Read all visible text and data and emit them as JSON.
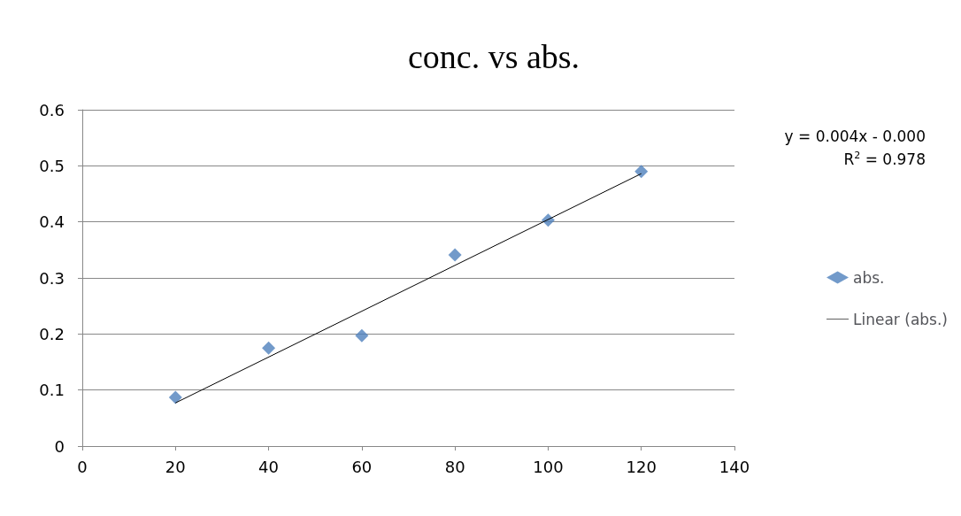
{
  "chart_data": {
    "type": "scatter",
    "title": "conc. vs abs.",
    "x": [
      20,
      40,
      60,
      80,
      100,
      120
    ],
    "series": [
      {
        "name": "abs.",
        "color": "#4f81bd",
        "values": [
          0.087,
          0.175,
          0.197,
          0.341,
          0.403,
          0.49
        ],
        "marker": "diamond"
      },
      {
        "name": "Linear (abs.)",
        "type": "line",
        "color": "#000000",
        "x": [
          20,
          120
        ],
        "values": [
          0.077,
          0.486
        ],
        "marker": "none",
        "line_style": "solid"
      }
    ],
    "xlim": [
      0,
      140
    ],
    "xticks": [
      0,
      20,
      40,
      60,
      80,
      100,
      120,
      140
    ],
    "ylim": [
      0,
      0.6
    ],
    "yticks": [
      0,
      0.1,
      0.2,
      0.3,
      0.4,
      0.5,
      0.6
    ],
    "grid": "y",
    "legend": "right",
    "annotations": [
      "y = 0.004x - 0.000",
      "R$^{2}$ = 0.978"
    ]
  }
}
